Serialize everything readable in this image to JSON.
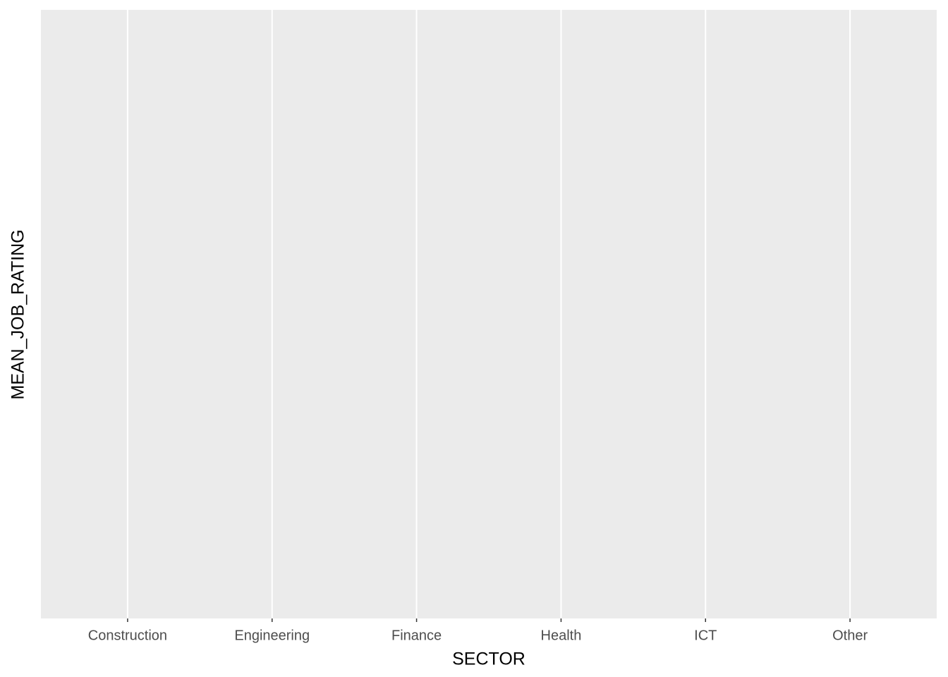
{
  "chart_data": {
    "type": "bar",
    "categories": [
      "Construction",
      "Engineering",
      "Finance",
      "Health",
      "ICT",
      "Other"
    ],
    "x_label": "SECTOR",
    "y_label": "MEAN_JOB_RATING",
    "grid": true
  }
}
